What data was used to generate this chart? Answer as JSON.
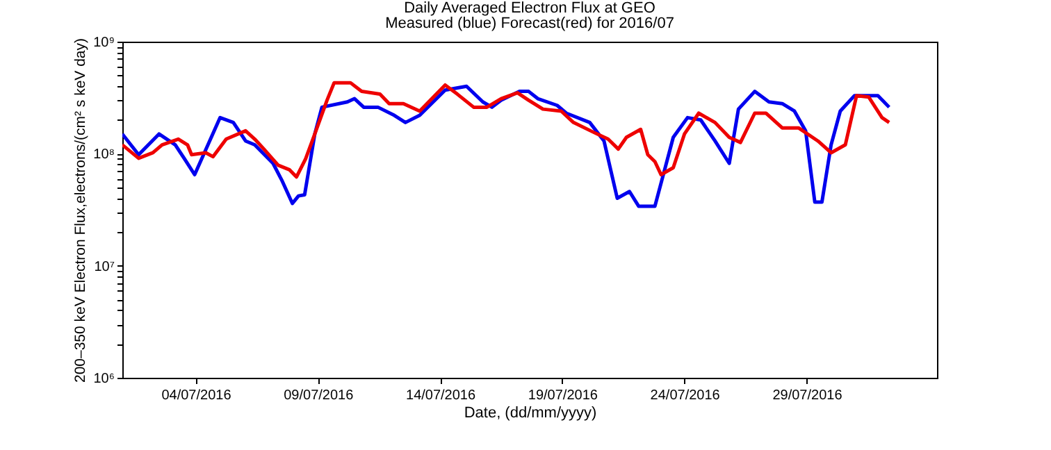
{
  "chart_data": {
    "type": "line",
    "title": "Daily Averaged Electron Flux at GEO",
    "subtitle": "Measured (blue) Forecast(red) for 2016/07",
    "xlabel": "Date, (dd/mm/yyyy)",
    "ylabel": "200–350 keV Electron Flux,electrons/(cm² s keV day)",
    "log": "y",
    "grid": false,
    "line_style": "solid",
    "marker": "none",
    "xlim": [
      "2016-07-01T00:00",
      "2016-08-03T08:00"
    ],
    "xticks": [
      {
        "value": "2016-07-04",
        "label": "04/07/2016"
      },
      {
        "value": "2016-07-09",
        "label": "09/07/2016"
      },
      {
        "value": "2016-07-14",
        "label": "14/07/2016"
      },
      {
        "value": "2016-07-19",
        "label": "19/07/2016"
      },
      {
        "value": "2016-07-24",
        "label": "24/07/2016"
      },
      {
        "value": "2016-07-29",
        "label": "29/07/2016"
      }
    ],
    "ylim": [
      1000000,
      1000000000
    ],
    "yticks": [
      {
        "value": 1000000,
        "label": "10⁶"
      },
      {
        "value": 2000000,
        "label": null
      },
      {
        "value": 3000000,
        "label": null
      },
      {
        "value": 4000000,
        "label": null
      },
      {
        "value": 5000000,
        "label": null
      },
      {
        "value": 6000000,
        "label": null
      },
      {
        "value": 7000000,
        "label": null
      },
      {
        "value": 8000000,
        "label": null
      },
      {
        "value": 9000000,
        "label": null
      },
      {
        "value": 10000000,
        "label": "10⁷"
      },
      {
        "value": 20000000,
        "label": null
      },
      {
        "value": 30000000,
        "label": null
      },
      {
        "value": 40000000,
        "label": null
      },
      {
        "value": 50000000,
        "label": null
      },
      {
        "value": 60000000,
        "label": null
      },
      {
        "value": 70000000,
        "label": null
      },
      {
        "value": 80000000,
        "label": null
      },
      {
        "value": 90000000,
        "label": null
      },
      {
        "value": 100000000,
        "label": "10⁸"
      },
      {
        "value": 200000000,
        "label": null
      },
      {
        "value": 300000000,
        "label": null
      },
      {
        "value": 400000000,
        "label": null
      },
      {
        "value": 500000000,
        "label": null
      },
      {
        "value": 600000000,
        "label": null
      },
      {
        "value": 700000000,
        "label": null
      },
      {
        "value": 800000000,
        "label": null
      },
      {
        "value": 900000000,
        "label": null
      },
      {
        "value": 1000000000,
        "label": "10⁹"
      }
    ],
    "series": [
      {
        "color": "#0000ee",
        "x": [
          "2016-07-01T00:00",
          "2016-07-01T16:00",
          "2016-07-02T12:00",
          "2016-07-03T04:00",
          "2016-07-03T13:00",
          "2016-07-03T23:00",
          "2016-07-05T00:00",
          "2016-07-05T13:00",
          "2016-07-06T01:00",
          "2016-07-06T10:00",
          "2016-07-07T04:00",
          "2016-07-07T13:00",
          "2016-07-07T23:00",
          "2016-07-08T05:00",
          "2016-07-08T11:00",
          "2016-07-08T21:00",
          "2016-07-09T04:00",
          "2016-07-10T05:00",
          "2016-07-10T12:00",
          "2016-07-10T21:00",
          "2016-07-11T11:00",
          "2016-07-12T03:00",
          "2016-07-12T14:00",
          "2016-07-13T04:00",
          "2016-07-14T05:00",
          "2016-07-15T02:00",
          "2016-07-15T18:00",
          "2016-07-16T03:00",
          "2016-07-16T12:00",
          "2016-07-17T06:00",
          "2016-07-17T15:00",
          "2016-07-18T00:00",
          "2016-07-18T19:00",
          "2016-07-19T04:00",
          "2016-07-20T03:00",
          "2016-07-20T17:00",
          "2016-07-21T06:00",
          "2016-07-21T18:00",
          "2016-07-22T03:00",
          "2016-07-22T19:00",
          "2016-07-23T04:00",
          "2016-07-23T13:00",
          "2016-07-24T03:00",
          "2016-07-24T16:00",
          "2016-07-25T06:00",
          "2016-07-25T20:00",
          "2016-07-26T05:00",
          "2016-07-26T21:00",
          "2016-07-27T11:00",
          "2016-07-28T00:00",
          "2016-07-28T12:00",
          "2016-07-28T23:00",
          "2016-07-29T08:00",
          "2016-07-29T15:00",
          "2016-07-30T00:00",
          "2016-07-30T09:00",
          "2016-07-30T23:00",
          "2016-07-31T22:00",
          "2016-08-01T09:00"
        ],
        "values": [
          150000000.0,
          98000000.0,
          150000000.0,
          120000000.0,
          90000000.0,
          65000000.0,
          210000000.0,
          190000000.0,
          130000000.0,
          120000000.0,
          82000000.0,
          57000000.0,
          36000000.0,
          42000000.0,
          43000000.0,
          150000000.0,
          260000000.0,
          290000000.0,
          310000000.0,
          260000000.0,
          260000000.0,
          220000000.0,
          190000000.0,
          220000000.0,
          370000000.0,
          400000000.0,
          290000000.0,
          260000000.0,
          300000000.0,
          360000000.0,
          360000000.0,
          310000000.0,
          270000000.0,
          230000000.0,
          190000000.0,
          130000000.0,
          40000000.0,
          46000000.0,
          34000000.0,
          34000000.0,
          69000000.0,
          140000000.0,
          210000000.0,
          200000000.0,
          130000000.0,
          82000000.0,
          250000000.0,
          360000000.0,
          290000000.0,
          280000000.0,
          240000000.0,
          160000000.0,
          37000000.0,
          37000000.0,
          120000000.0,
          240000000.0,
          330000000.0,
          330000000.0,
          260000000.0
        ]
      },
      {
        "color": "#ee0000",
        "x": [
          "2016-07-01T00:00",
          "2016-07-01T16:00",
          "2016-07-02T06:00",
          "2016-07-02T15:00",
          "2016-07-03T07:00",
          "2016-07-03T16:00",
          "2016-07-03T20:00",
          "2016-07-04T10:00",
          "2016-07-04T17:00",
          "2016-07-05T06:00",
          "2016-07-06T01:00",
          "2016-07-06T10:00",
          "2016-07-06T19:00",
          "2016-07-07T09:00",
          "2016-07-07T20:00",
          "2016-07-08T03:00",
          "2016-07-08T12:00",
          "2016-07-08T21:00",
          "2016-07-09T09:00",
          "2016-07-09T16:00",
          "2016-07-10T08:00",
          "2016-07-10T19:00",
          "2016-07-11T13:00",
          "2016-07-11T22:00",
          "2016-07-12T12:00",
          "2016-07-13T04:00",
          "2016-07-13T16:00",
          "2016-07-14T05:00",
          "2016-07-14T17:00",
          "2016-07-15T09:00",
          "2016-07-15T22:00",
          "2016-07-16T12:00",
          "2016-07-17T04:00",
          "2016-07-17T15:00",
          "2016-07-18T05:00",
          "2016-07-18T23:00",
          "2016-07-19T11:00",
          "2016-07-20T07:00",
          "2016-07-20T21:00",
          "2016-07-21T07:00",
          "2016-07-21T15:00",
          "2016-07-22T05:00",
          "2016-07-22T12:00",
          "2016-07-22T19:00",
          "2016-07-23T01:00",
          "2016-07-23T13:00",
          "2016-07-24T00:00",
          "2016-07-24T14:00",
          "2016-07-25T06:00",
          "2016-07-25T20:00",
          "2016-07-26T07:00",
          "2016-07-26T21:00",
          "2016-07-27T08:00",
          "2016-07-28T00:00",
          "2016-07-28T16:00",
          "2016-07-29T11:00",
          "2016-07-30T00:00",
          "2016-07-30T14:00",
          "2016-07-31T01:00",
          "2016-07-31T13:00",
          "2016-08-01T02:00",
          "2016-08-01T09:00"
        ],
        "values": [
          120000000.0,
          91000000.0,
          102000000.0,
          120000000.0,
          135000000.0,
          120000000.0,
          98000000.0,
          102000000.0,
          94000000.0,
          135000000.0,
          160000000.0,
          135000000.0,
          110000000.0,
          79000000.0,
          72000000.0,
          62000000.0,
          90000000.0,
          150000000.0,
          300000000.0,
          430000000.0,
          430000000.0,
          360000000.0,
          340000000.0,
          280000000.0,
          280000000.0,
          240000000.0,
          310000000.0,
          410000000.0,
          340000000.0,
          260000000.0,
          260000000.0,
          310000000.0,
          350000000.0,
          300000000.0,
          250000000.0,
          240000000.0,
          190000000.0,
          155000000.0,
          135000000.0,
          110000000.0,
          140000000.0,
          165000000.0,
          98000000.0,
          85000000.0,
          65000000.0,
          75000000.0,
          150000000.0,
          230000000.0,
          190000000.0,
          140000000.0,
          126000000.0,
          230000000.0,
          230000000.0,
          170000000.0,
          170000000.0,
          130000000.0,
          102000000.0,
          120000000.0,
          330000000.0,
          320000000.0,
          210000000.0,
          190000000.0
        ]
      }
    ]
  }
}
